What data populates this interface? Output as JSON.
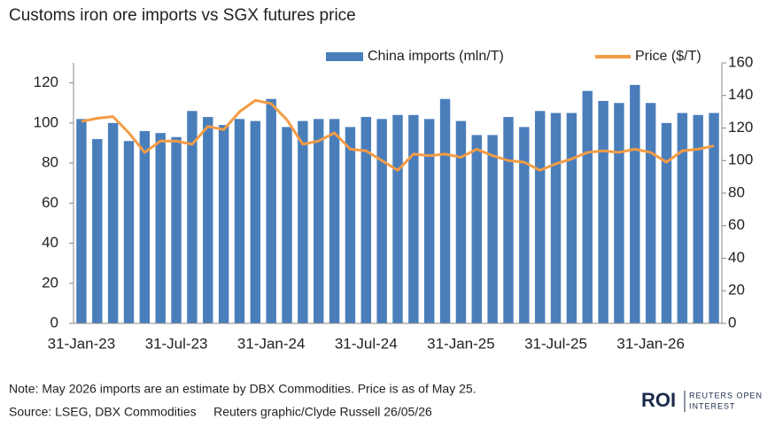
{
  "chart_data": {
    "type": "bar-line",
    "title": "Customs iron ore imports vs SGX futures price",
    "categories": [
      "31-Jan-23",
      null,
      null,
      null,
      null,
      null,
      "31-Jul-23",
      null,
      null,
      null,
      null,
      null,
      "31-Jan-24",
      null,
      null,
      null,
      null,
      null,
      "31-Jul-24",
      null,
      null,
      null,
      null,
      null,
      "31-Jan-25",
      null,
      null,
      null,
      null,
      null,
      "31-Jul-25",
      null,
      null,
      null,
      null,
      null,
      "31-Jan-26",
      null,
      null,
      null,
      null
    ],
    "series": [
      {
        "name": "China imports (mln/T)",
        "type": "bar",
        "color": "#4a7ebb",
        "values": [
          102,
          92,
          100,
          91,
          96,
          95,
          93,
          106,
          103,
          99,
          102,
          101,
          112,
          98,
          101,
          102,
          102,
          98,
          103,
          102,
          104,
          104,
          102,
          112,
          101,
          94,
          94,
          103,
          98,
          106,
          105,
          105,
          116,
          111,
          110,
          119,
          110,
          100,
          105,
          104,
          105
        ]
      },
      {
        "name": "Price ($/T)",
        "type": "line",
        "axis": "y2",
        "color": "#f39c45",
        "values": [
          124,
          126,
          127,
          117,
          105,
          112,
          112,
          110,
          121,
          119,
          130,
          137,
          135,
          125,
          110,
          112,
          117,
          107,
          106,
          100,
          94,
          104,
          103,
          104,
          102,
          107,
          103,
          100,
          99,
          94,
          98,
          101,
          105,
          106,
          105,
          107,
          105,
          99,
          106,
          107,
          109
        ]
      }
    ],
    "ylim": [
      0,
      130
    ],
    "yticks": [
      0,
      20,
      40,
      60,
      80,
      100,
      120
    ],
    "y2lim": [
      0,
      160
    ],
    "y2ticks": [
      0,
      20,
      40,
      60,
      80,
      100,
      120,
      140,
      160
    ],
    "grid": false,
    "legend": "top"
  },
  "note": "Note: May 2026 imports are an estimate by DBX Commodities. Price is as of May 25.",
  "source": "Source: LSEG, DBX Commodities     Reuters graphic/Clyde Russell 26/05/26",
  "logo": {
    "mark": "ROI",
    "name": [
      "REUTERS OPEN",
      "INTEREST"
    ]
  }
}
